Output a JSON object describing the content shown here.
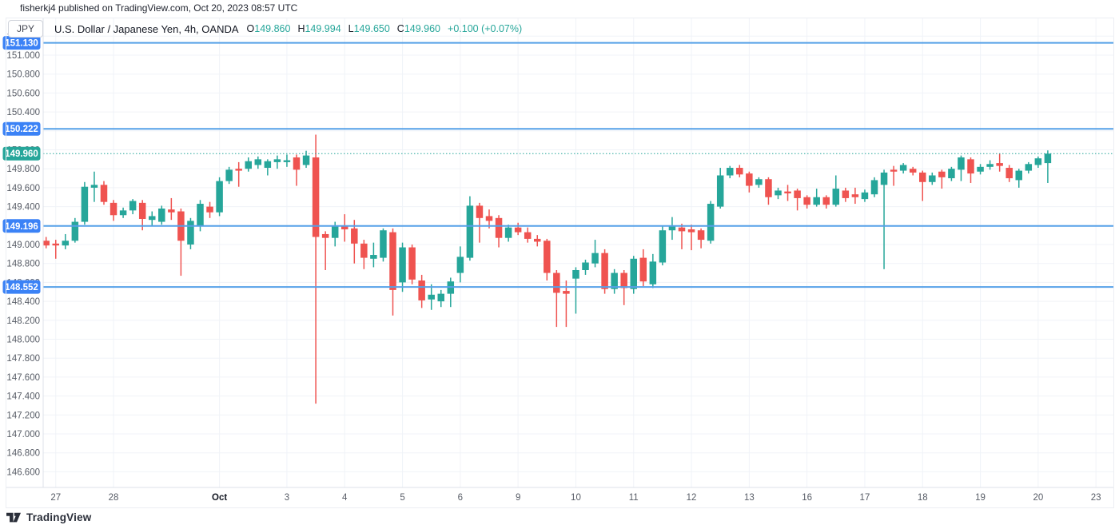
{
  "published_line": "fisherkj4 published on TradingView.com, Oct 20, 2023 08:57 UTC",
  "header": {
    "symbol_button": "JPY",
    "title": "U.S. Dollar / Japanese Yen, 4h, OANDA",
    "ohlc": [
      {
        "label": "O",
        "value": "149.860"
      },
      {
        "label": "H",
        "value": "149.994"
      },
      {
        "label": "L",
        "value": "149.650"
      },
      {
        "label": "C",
        "value": "149.960"
      }
    ],
    "change": "+0.100 (+0.07%)"
  },
  "footer": {
    "brand": "TradingView"
  },
  "colors": {
    "up": "#26a69a",
    "down": "#ef5350",
    "line_blue": "#55a0e8",
    "badge_blue": "#3b82f6",
    "badge_teal": "#26a69a",
    "grid": "#f0f3f8",
    "axis_border": "#dde1e8",
    "axis_text": "#575c66",
    "text_dark": "#131722"
  },
  "chart_data": {
    "type": "candlestick",
    "symbol": "USD/JPY",
    "title": "U.S. Dollar / Japanese Yen",
    "timeframe": "4h",
    "exchange": "OANDA",
    "price_axis": {
      "min": 146.6,
      "max": 151.2,
      "step": 0.2,
      "decimals": 3
    },
    "horizontal_lines": [
      {
        "price": 151.13,
        "label": "151.130"
      },
      {
        "price": 150.222,
        "label": "150.222"
      },
      {
        "price": 149.196,
        "label": "149.196"
      },
      {
        "price": 148.552,
        "label": "148.552"
      }
    ],
    "current_price": {
      "price": 149.96,
      "label": "149.960"
    },
    "time_axis": [
      {
        "label": "27",
        "index": 1,
        "emphasis": false
      },
      {
        "label": "28",
        "index": 7,
        "emphasis": false
      },
      {
        "label": "Oct",
        "index": 18,
        "emphasis": true
      },
      {
        "label": "3",
        "index": 25,
        "emphasis": false
      },
      {
        "label": "4",
        "index": 31,
        "emphasis": false
      },
      {
        "label": "5",
        "index": 37,
        "emphasis": false
      },
      {
        "label": "6",
        "index": 43,
        "emphasis": false
      },
      {
        "label": "9",
        "index": 49,
        "emphasis": false
      },
      {
        "label": "10",
        "index": 55,
        "emphasis": false
      },
      {
        "label": "11",
        "index": 61,
        "emphasis": false
      },
      {
        "label": "12",
        "index": 67,
        "emphasis": false
      },
      {
        "label": "13",
        "index": 73,
        "emphasis": false
      },
      {
        "label": "16",
        "index": 79,
        "emphasis": false
      },
      {
        "label": "17",
        "index": 85,
        "emphasis": false
      },
      {
        "label": "18",
        "index": 91,
        "emphasis": false
      },
      {
        "label": "19",
        "index": 97,
        "emphasis": false
      },
      {
        "label": "20",
        "index": 103,
        "emphasis": false
      },
      {
        "label": "23",
        "index": 109,
        "emphasis": false
      }
    ],
    "candles_ohlc": [
      [
        149.04,
        149.08,
        148.96,
        148.99
      ],
      [
        149.01,
        149.05,
        148.85,
        148.99
      ],
      [
        148.99,
        149.11,
        148.95,
        149.04
      ],
      [
        149.04,
        149.28,
        149.02,
        149.24
      ],
      [
        149.24,
        149.66,
        149.21,
        149.61
      ],
      [
        149.6,
        149.77,
        149.45,
        149.63
      ],
      [
        149.63,
        149.67,
        149.42,
        149.45
      ],
      [
        149.44,
        149.47,
        149.25,
        149.31
      ],
      [
        149.31,
        149.39,
        149.28,
        149.36
      ],
      [
        149.36,
        149.48,
        149.32,
        149.46
      ],
      [
        149.44,
        149.47,
        149.15,
        149.27
      ],
      [
        149.26,
        149.35,
        149.2,
        149.3
      ],
      [
        149.24,
        149.41,
        149.21,
        149.38
      ],
      [
        149.37,
        149.49,
        149.26,
        149.34
      ],
      [
        149.35,
        149.38,
        148.67,
        149.04
      ],
      [
        149.0,
        149.28,
        148.95,
        149.25
      ],
      [
        149.2,
        149.47,
        149.14,
        149.43
      ],
      [
        149.4,
        149.45,
        149.28,
        149.34
      ],
      [
        149.34,
        149.71,
        149.3,
        149.67
      ],
      [
        149.67,
        149.82,
        149.64,
        149.79
      ],
      [
        149.8,
        149.87,
        149.61,
        149.78
      ],
      [
        149.8,
        149.92,
        149.77,
        149.88
      ],
      [
        149.84,
        149.93,
        149.8,
        149.9
      ],
      [
        149.81,
        149.9,
        149.73,
        149.88
      ],
      [
        149.87,
        149.94,
        149.8,
        149.9
      ],
      [
        149.87,
        149.95,
        149.82,
        149.89
      ],
      [
        149.92,
        149.95,
        149.62,
        149.79
      ],
      [
        149.84,
        149.99,
        149.81,
        149.94
      ],
      [
        149.92,
        150.16,
        147.32,
        149.08
      ],
      [
        149.11,
        149.14,
        148.73,
        149.07
      ],
      [
        149.07,
        149.24,
        148.98,
        149.19
      ],
      [
        149.2,
        149.32,
        149.03,
        149.16
      ],
      [
        149.17,
        149.26,
        148.8,
        149.01
      ],
      [
        149.01,
        149.05,
        148.74,
        148.86
      ],
      [
        148.85,
        149.02,
        148.76,
        148.89
      ],
      [
        148.86,
        149.17,
        148.82,
        149.15
      ],
      [
        149.13,
        149.17,
        148.25,
        148.52
      ],
      [
        148.6,
        149.02,
        148.5,
        148.97
      ],
      [
        148.97,
        149.0,
        148.58,
        148.63
      ],
      [
        148.62,
        148.68,
        148.33,
        148.41
      ],
      [
        148.42,
        148.58,
        148.31,
        148.47
      ],
      [
        148.4,
        148.52,
        148.34,
        148.48
      ],
      [
        148.48,
        148.65,
        148.34,
        148.61
      ],
      [
        148.7,
        148.98,
        148.6,
        148.87
      ],
      [
        148.86,
        149.51,
        148.83,
        149.41
      ],
      [
        149.41,
        149.44,
        149.02,
        149.28
      ],
      [
        149.3,
        149.37,
        149.17,
        149.25
      ],
      [
        149.28,
        149.31,
        148.97,
        149.07
      ],
      [
        149.07,
        149.21,
        149.03,
        149.18
      ],
      [
        149.18,
        149.23,
        149.1,
        149.13
      ],
      [
        149.13,
        149.18,
        149.02,
        149.06
      ],
      [
        149.06,
        149.1,
        148.98,
        149.03
      ],
      [
        149.04,
        149.06,
        148.62,
        148.7
      ],
      [
        148.7,
        148.73,
        148.13,
        148.49
      ],
      [
        148.51,
        148.62,
        148.13,
        148.48
      ],
      [
        148.64,
        148.76,
        148.27,
        148.73
      ],
      [
        148.73,
        148.84,
        148.68,
        148.81
      ],
      [
        148.8,
        149.05,
        148.76,
        148.91
      ],
      [
        148.91,
        148.95,
        148.48,
        148.53
      ],
      [
        148.53,
        148.74,
        148.48,
        148.7
      ],
      [
        148.7,
        148.73,
        148.36,
        148.54
      ],
      [
        148.53,
        148.88,
        148.48,
        148.85
      ],
      [
        148.86,
        148.95,
        148.56,
        148.61
      ],
      [
        148.58,
        148.9,
        148.54,
        148.82
      ],
      [
        148.81,
        149.19,
        148.78,
        149.15
      ],
      [
        149.15,
        149.29,
        149.05,
        149.19
      ],
      [
        149.18,
        149.22,
        148.95,
        149.14
      ],
      [
        149.16,
        149.21,
        148.94,
        149.13
      ],
      [
        149.15,
        149.17,
        148.96,
        149.05
      ],
      [
        149.04,
        149.46,
        149.01,
        149.43
      ],
      [
        149.4,
        149.81,
        149.38,
        149.73
      ],
      [
        149.73,
        149.83,
        149.7,
        149.81
      ],
      [
        149.81,
        149.84,
        149.71,
        149.74
      ],
      [
        149.75,
        149.77,
        149.55,
        149.62
      ],
      [
        149.63,
        149.71,
        149.6,
        149.69
      ],
      [
        149.69,
        149.71,
        149.42,
        149.5
      ],
      [
        149.52,
        149.6,
        149.48,
        149.57
      ],
      [
        149.56,
        149.63,
        149.46,
        149.54
      ],
      [
        149.57,
        149.59,
        149.36,
        149.49
      ],
      [
        149.5,
        149.52,
        149.38,
        149.42
      ],
      [
        149.42,
        149.59,
        149.4,
        149.5
      ],
      [
        149.5,
        149.52,
        149.38,
        149.42
      ],
      [
        149.42,
        149.73,
        149.4,
        149.59
      ],
      [
        149.57,
        149.6,
        149.45,
        149.49
      ],
      [
        149.53,
        149.6,
        149.43,
        149.5
      ],
      [
        149.48,
        149.58,
        149.45,
        149.55
      ],
      [
        149.53,
        149.71,
        149.5,
        149.68
      ],
      [
        149.63,
        149.79,
        148.74,
        149.76
      ],
      [
        149.79,
        149.83,
        149.62,
        149.77
      ],
      [
        149.78,
        149.86,
        149.75,
        149.84
      ],
      [
        149.8,
        149.82,
        149.73,
        149.76
      ],
      [
        149.76,
        149.78,
        149.46,
        149.66
      ],
      [
        149.66,
        149.76,
        149.63,
        149.73
      ],
      [
        149.77,
        149.79,
        149.59,
        149.71
      ],
      [
        149.7,
        149.82,
        149.67,
        149.8
      ],
      [
        149.79,
        149.94,
        149.67,
        149.92
      ],
      [
        149.9,
        149.92,
        149.65,
        149.75
      ],
      [
        149.77,
        149.85,
        149.74,
        149.82
      ],
      [
        149.82,
        149.89,
        149.79,
        149.85
      ],
      [
        149.86,
        149.96,
        149.77,
        149.83
      ],
      [
        149.81,
        149.84,
        149.66,
        149.7
      ],
      [
        149.68,
        149.8,
        149.6,
        149.78
      ],
      [
        149.78,
        149.87,
        149.75,
        149.85
      ],
      [
        149.84,
        149.93,
        149.81,
        149.91
      ],
      [
        149.86,
        149.994,
        149.65,
        149.96
      ]
    ]
  }
}
